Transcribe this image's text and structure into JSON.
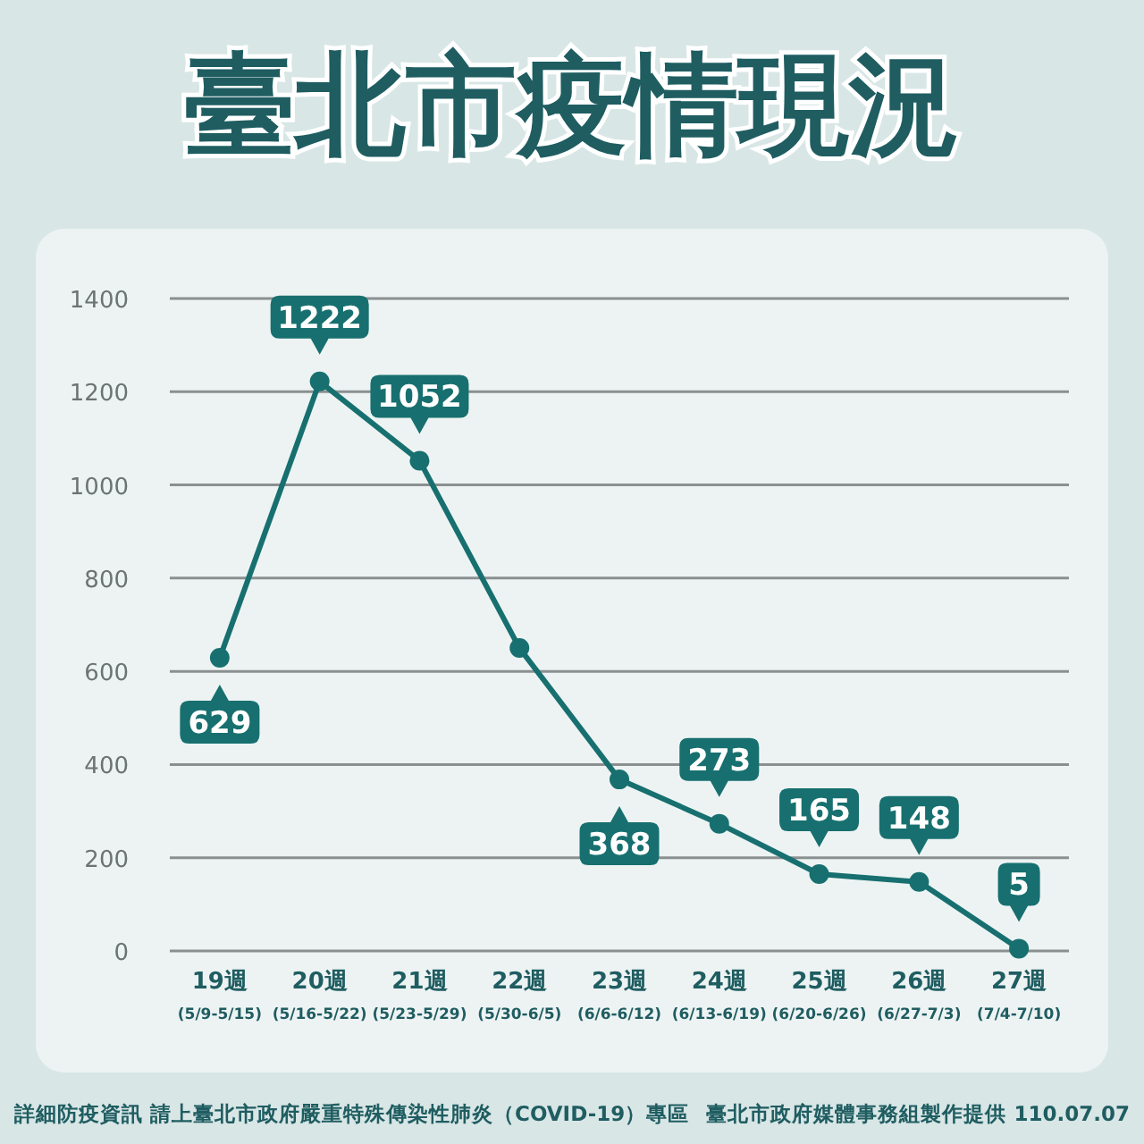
{
  "chart_data": {
    "type": "line",
    "title": "臺北市疫情現況",
    "categories": [
      "19週\n(5/9-5/15)",
      "20週\n(5/16-5/22)",
      "21週\n(5/23-5/29)",
      "22週\n(5/30-6/5)",
      "23週\n(6/6-6/12)",
      "24週\n(6/13-6/19)",
      "25週\n(6/20-6/26)",
      "26週\n(6/27-7/3)",
      "27週\n(7/4-7/10)"
    ],
    "series": [
      {
        "color": "#17706f",
        "values": [
          629,
          1222,
          1052,
          650,
          368,
          273,
          165,
          148,
          5
        ],
        "value_labels": [
          "629",
          "1222",
          "1052",
          null,
          "368",
          "273",
          "165",
          "148",
          "5"
        ]
      }
    ],
    "ylim": [
      0,
      1400
    ],
    "yticks": [
      0,
      200,
      400,
      600,
      800,
      1000,
      1200,
      1400
    ],
    "grid": "y",
    "marker": "circle",
    "line_style": "solid",
    "annotations": [
      "詳細防疫資訊 請上臺北市政府嚴重特殊傳染性肺炎（COVID-19）專區",
      "臺北市政府媒體事務組製作提供 110.07.07"
    ]
  }
}
